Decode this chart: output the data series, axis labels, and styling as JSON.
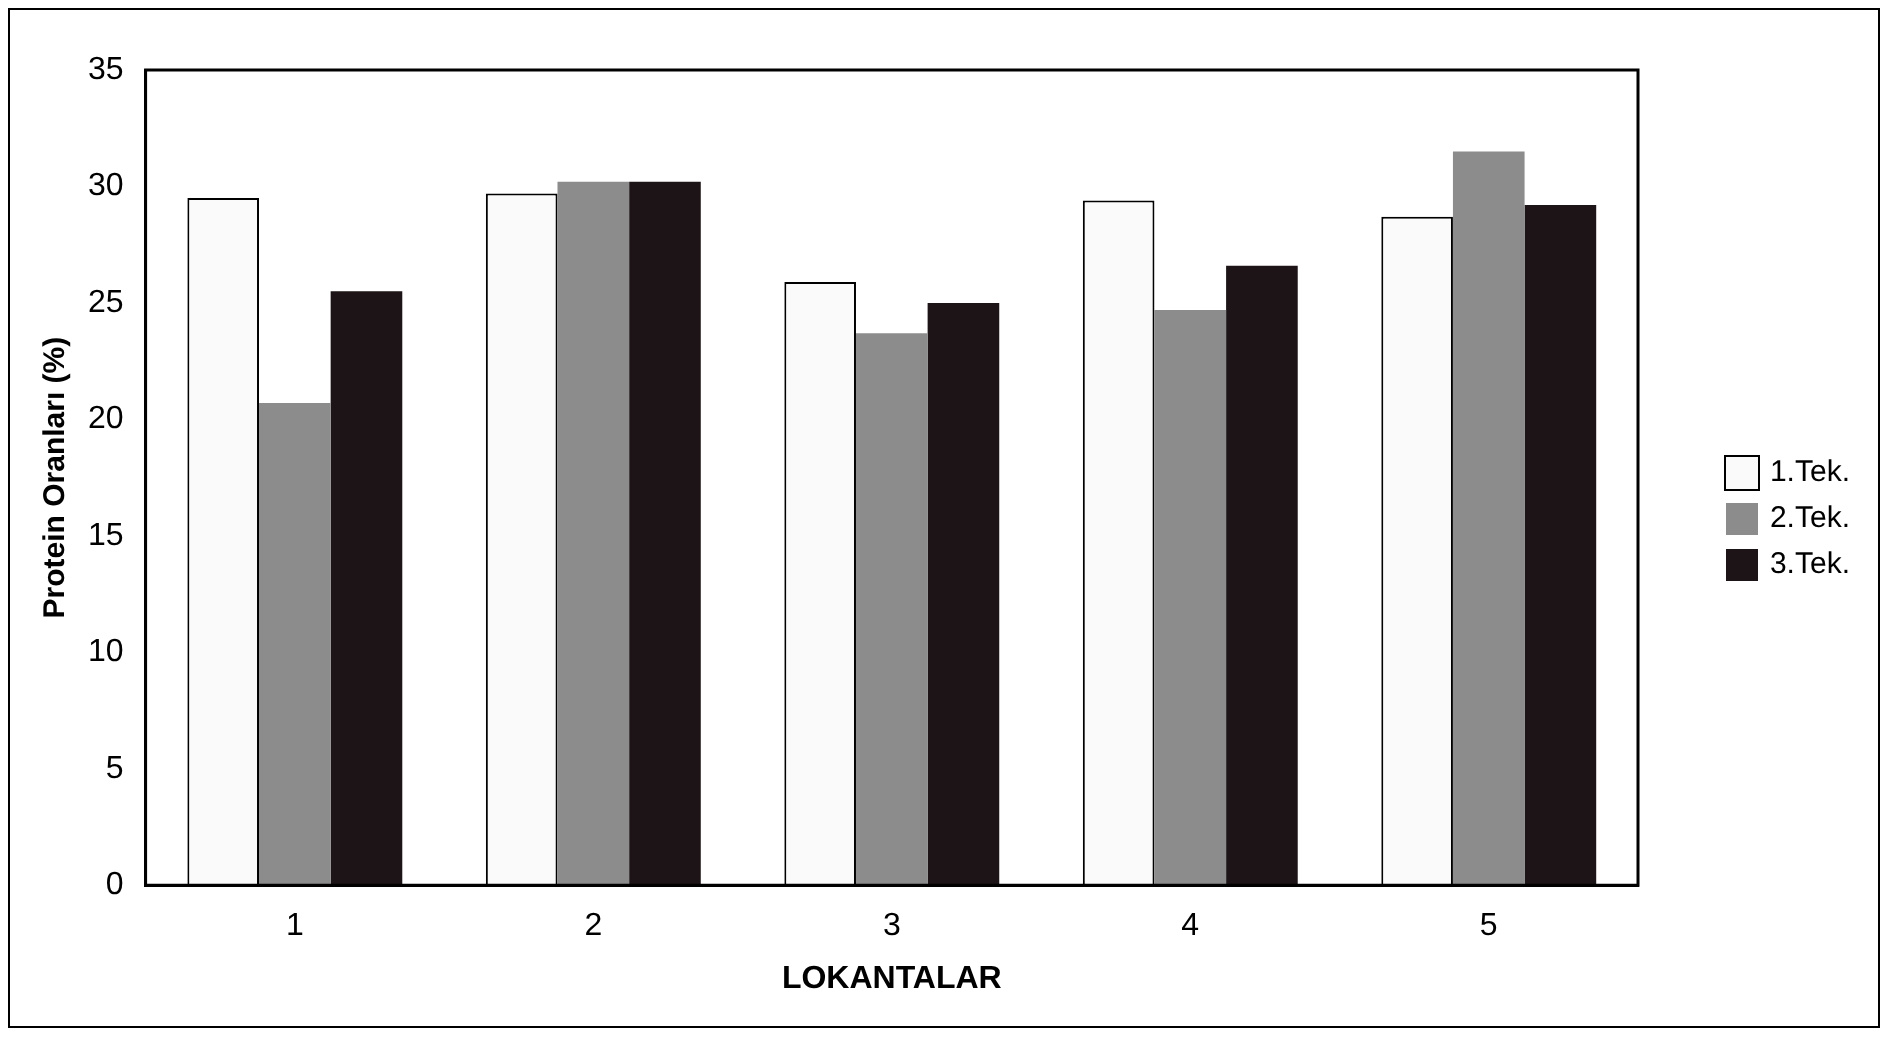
{
  "chart_data": {
    "type": "bar",
    "xlabel": "LOKANTALAR",
    "ylabel": "Protein Oranları (%)",
    "categories": [
      "1",
      "2",
      "3",
      "4",
      "5"
    ],
    "series": [
      {
        "name": "1.Tek.",
        "color": "#fafafa",
        "values": [
          29.5,
          29.7,
          25.9,
          29.4,
          28.7
        ]
      },
      {
        "name": "2.Tek.",
        "color": "#8c8c8c",
        "values": [
          20.7,
          30.2,
          23.7,
          24.7,
          31.5
        ]
      },
      {
        "name": "3.Tek.",
        "color": "#1c1416",
        "values": [
          25.5,
          30.2,
          25.0,
          26.6,
          29.2
        ]
      }
    ],
    "ylim": [
      0,
      35
    ],
    "yticks": [
      0,
      5,
      10,
      15,
      20,
      25,
      30,
      35
    ],
    "grid": false,
    "legend": "right"
  }
}
